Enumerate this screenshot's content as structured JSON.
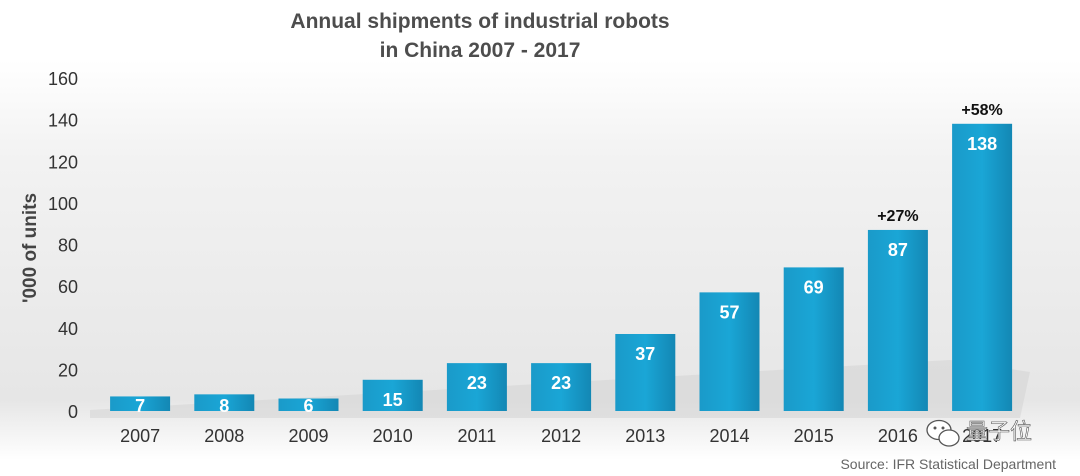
{
  "chart_data": {
    "type": "bar",
    "title_lines": [
      "Annual shipments of industrial robots",
      "in China 2007 - 2017"
    ],
    "ylabel": "'000 of units",
    "xlabel": "",
    "ylim": [
      0,
      160
    ],
    "yticks": [
      0,
      20,
      40,
      60,
      80,
      100,
      120,
      140,
      160
    ],
    "categories": [
      "2007",
      "2008",
      "2009",
      "2010",
      "2011",
      "2012",
      "2013",
      "2014",
      "2015",
      "2016",
      "2017"
    ],
    "values": [
      7,
      8,
      6,
      15,
      23,
      23,
      37,
      57,
      69,
      87,
      138
    ],
    "annotations": [
      {
        "category": "2016",
        "text": "+27%"
      },
      {
        "category": "2017",
        "text": "+58%"
      }
    ],
    "grid": false,
    "bar_color": "#1a9ac9"
  },
  "source": "Source: IFR Statistical Department",
  "watermark": {
    "icon": "wechat-icon",
    "text": "量子位"
  }
}
